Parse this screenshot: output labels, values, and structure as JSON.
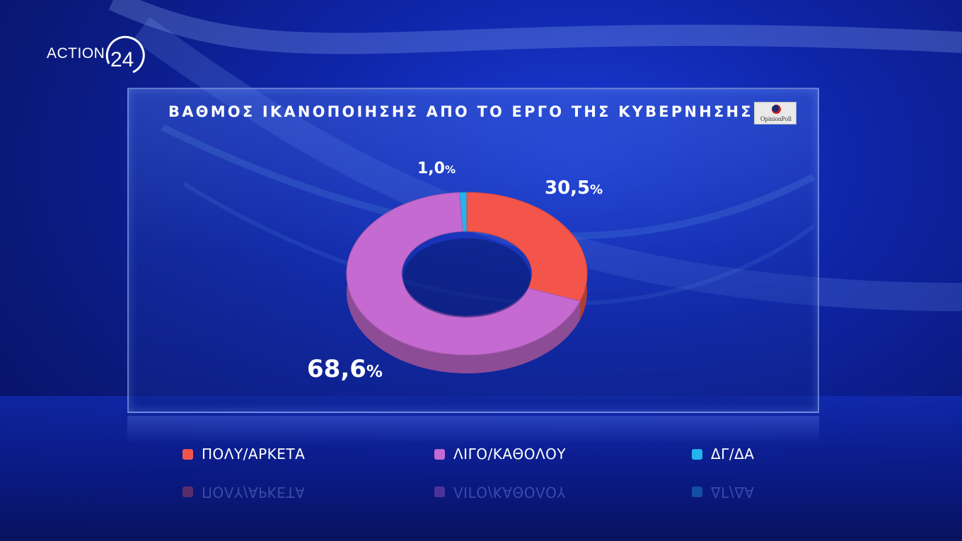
{
  "channel": {
    "logo_text": "ACTION",
    "logo_number": "24"
  },
  "source_logo": {
    "text": "OpinionPoll"
  },
  "colors": {
    "poly": "#f4554b",
    "ligo": "#c46ad0",
    "dgda": "#22b4ee"
  },
  "chart_data": {
    "type": "pie",
    "style": "donut-3d",
    "title": "ΒΑΘΜΟΣ ΙΚΑΝΟΠΟΙΗΣΗΣ ΑΠΟ ΤΟ ΕΡΓΟ ΤΗΣ ΚΥΒΕΡΝΗΣΗΣ",
    "categories": [
      "ΠΟΛΥ/ΑΡΚΕΤΑ",
      "ΛΙΓΟ/ΚΑΘΟΛΟΥ",
      "ΔΓ/ΔΑ"
    ],
    "values": [
      30.5,
      68.6,
      1.0
    ],
    "labels": [
      "30,5",
      "68,6",
      "1,0"
    ],
    "unit": "%",
    "legend_position": "bottom"
  }
}
